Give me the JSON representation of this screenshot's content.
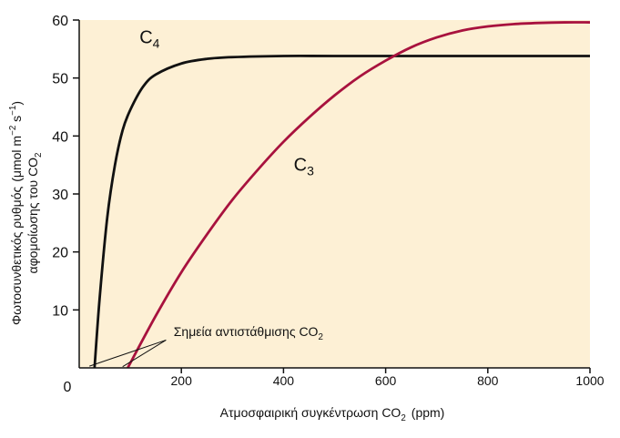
{
  "chart_data": {
    "type": "line",
    "xlim": [
      0,
      1000
    ],
    "ylim": [
      0,
      60
    ],
    "x_ticks": [
      200,
      400,
      600,
      800,
      1000
    ],
    "y_ticks": [
      10,
      20,
      30,
      40,
      50,
      60
    ],
    "origin_label": "0",
    "xlabel": {
      "main": "Ατμοσφαιρική συγκέντρωση CO",
      "sub": "2",
      "unit": "(ppm)"
    },
    "ylabel": {
      "line1_main": "Φωτοσυνθετικός ρυθμός",
      "line1_unit_open": "(μmol m",
      "line1_sup1": "−2",
      "line1_mid": " s",
      "line1_sup2": "−1",
      "line1_close": ")",
      "line2_main": "αφομοίωσης του CO",
      "line2_sub": "2"
    },
    "background_color": "#fdf0d5",
    "series": [
      {
        "name": "C4",
        "label_main": "C",
        "label_sub": "4",
        "label_at": [
          118,
          56
        ],
        "color": "#111111",
        "points": [
          [
            30,
            0
          ],
          [
            40,
            12
          ],
          [
            55,
            26
          ],
          [
            70,
            35
          ],
          [
            85,
            41
          ],
          [
            100,
            44.5
          ],
          [
            125,
            48.5
          ],
          [
            150,
            50.6
          ],
          [
            200,
            52.5
          ],
          [
            250,
            53.3
          ],
          [
            300,
            53.6
          ],
          [
            400,
            53.8
          ],
          [
            500,
            53.8
          ],
          [
            700,
            53.8
          ],
          [
            1000,
            53.8
          ]
        ]
      },
      {
        "name": "C3",
        "label_main": "C",
        "label_sub": "3",
        "label_at": [
          420,
          34
        ],
        "color": "#a8123e",
        "points": [
          [
            95,
            0
          ],
          [
            150,
            9
          ],
          [
            200,
            16.5
          ],
          [
            250,
            23
          ],
          [
            300,
            29
          ],
          [
            350,
            34.2
          ],
          [
            400,
            39
          ],
          [
            450,
            43.2
          ],
          [
            500,
            47
          ],
          [
            550,
            50.3
          ],
          [
            600,
            53
          ],
          [
            650,
            55.3
          ],
          [
            700,
            57
          ],
          [
            750,
            58.2
          ],
          [
            800,
            58.9
          ],
          [
            850,
            59.3
          ],
          [
            900,
            59.5
          ],
          [
            950,
            59.6
          ],
          [
            1000,
            59.6
          ]
        ]
      }
    ],
    "annotation": {
      "text_main": "Σημεία αντιστάθμισης CO",
      "text_sub": "2",
      "text_at": [
        185,
        5.5
      ],
      "from_x": 170,
      "from_y": 4.8,
      "targets": [
        [
          20,
          0.3
        ],
        [
          85,
          0.2
        ]
      ]
    }
  }
}
